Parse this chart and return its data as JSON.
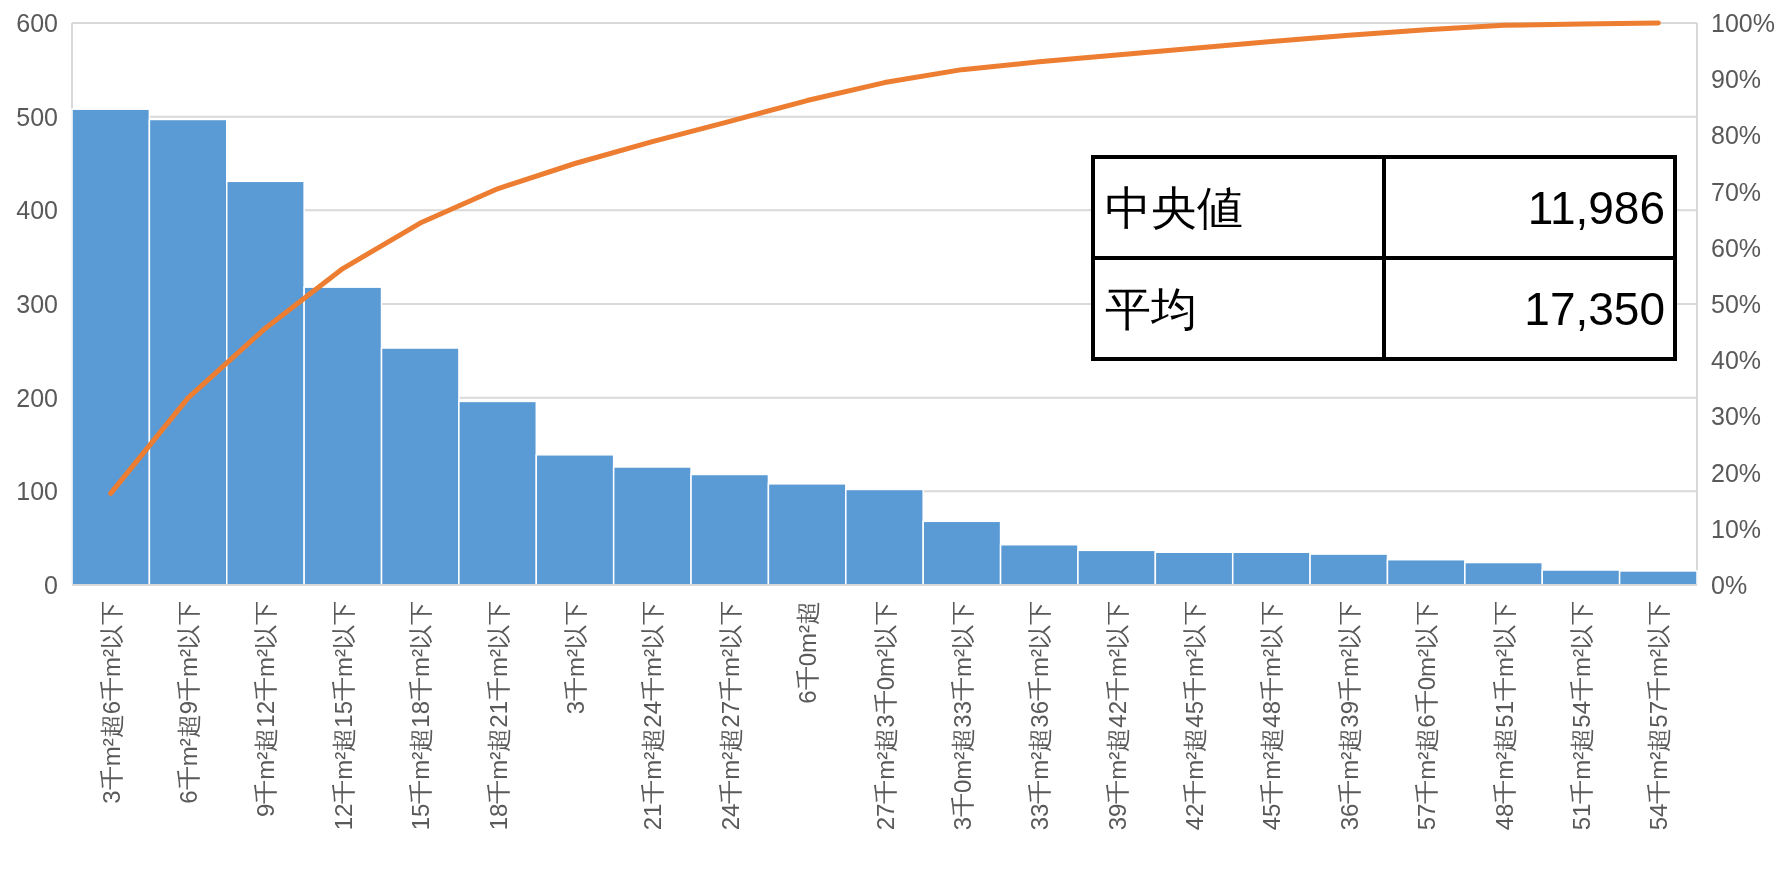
{
  "chart_data": {
    "type": "bar",
    "categories": [
      "3千m²超6千m²以下",
      "6千m²超9千m²以下",
      "9千m²超12千m²以下",
      "12千m²超15千m²以下",
      "15千m²超18千m²以下",
      "18千m²超21千m²以下",
      "3千m²以下",
      "21千m²超24千m²以下",
      "24千m²超27千m²以下",
      "6千0m²超",
      "27千m²超3千0m²以下",
      "3千0m²超33千m²以下",
      "33千m²超36千m²以下",
      "39千m²超42千m²以下",
      "42千m²超45千m²以下",
      "45千m²超48千m²以下",
      "36千m²超39千m²以下",
      "57千m²超6千0m²以下",
      "48千m²超51千m²以下",
      "51千m²超54千m²以下",
      "54千m²超57千m²以下"
    ],
    "series": [
      {
        "color": "#5b9bd5",
        "values": [
          508,
          497,
          431,
          318,
          253,
          196,
          139,
          126,
          118,
          108,
          102,
          68,
          43,
          37,
          35,
          35,
          33,
          27,
          24,
          16,
          15
        ]
      },
      {
        "type": "line",
        "axis": "y2",
        "color": "#ed7d31",
        "values": [
          16.3,
          33.3,
          45.7,
          56.3,
          64.4,
          70.5,
          75.0,
          78.9,
          82.5,
          86.2,
          89.4,
          91.7,
          93.1,
          94.3,
          95.5,
          96.7,
          97.8,
          98.8,
          99.6,
          99.8,
          100
        ]
      }
    ],
    "ylim": [
      0,
      600
    ],
    "yticks": [
      0,
      100,
      200,
      300,
      400,
      500,
      600
    ],
    "y2lim": [
      0,
      100
    ],
    "y2ticks": [
      {
        "value": 0,
        "label": "0%"
      },
      {
        "value": 10,
        "label": "10%"
      },
      {
        "value": 20,
        "label": "20%"
      },
      {
        "value": 30,
        "label": "30%"
      },
      {
        "value": 40,
        "label": "40%"
      },
      {
        "value": 50,
        "label": "50%"
      },
      {
        "value": 60,
        "label": "60%"
      },
      {
        "value": 70,
        "label": "70%"
      },
      {
        "value": 80,
        "label": "80%"
      },
      {
        "value": 90,
        "label": "90%"
      },
      {
        "value": 100,
        "label": "100%"
      }
    ],
    "grid": "y",
    "annotations": [
      "中央値",
      "11,986",
      "平均",
      "17,350"
    ]
  }
}
